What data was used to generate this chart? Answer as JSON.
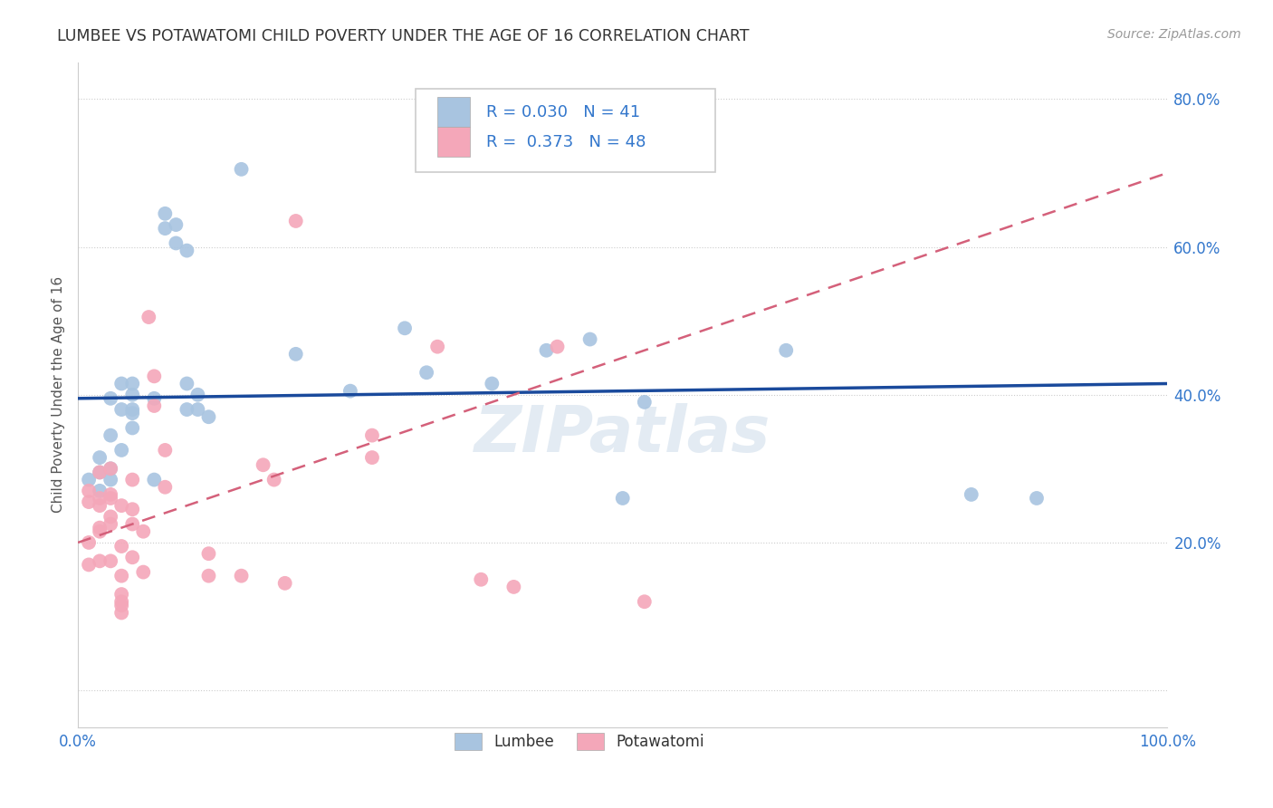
{
  "title": "LUMBEE VS POTAWATOMI CHILD POVERTY UNDER THE AGE OF 16 CORRELATION CHART",
  "source": "Source: ZipAtlas.com",
  "ylabel": "Child Poverty Under the Age of 16",
  "xlim": [
    0.0,
    1.0
  ],
  "ylim": [
    0.0,
    0.85
  ],
  "lumbee_color": "#a8c4e0",
  "potawatomi_color": "#f4a7b9",
  "lumbee_line_color": "#1a4a9c",
  "potawatomi_line_color": "#d4607a",
  "legend_lumbee_label": "Lumbee",
  "legend_potawatomi_label": "Potawatomi",
  "R_lumbee": 0.03,
  "N_lumbee": 41,
  "R_potawatomi": 0.373,
  "N_potawatomi": 48,
  "watermark": "ZIPatlas",
  "lumbee_points": [
    [
      0.01,
      0.285
    ],
    [
      0.02,
      0.295
    ],
    [
      0.02,
      0.315
    ],
    [
      0.02,
      0.27
    ],
    [
      0.03,
      0.3
    ],
    [
      0.03,
      0.345
    ],
    [
      0.03,
      0.395
    ],
    [
      0.03,
      0.285
    ],
    [
      0.04,
      0.325
    ],
    [
      0.04,
      0.38
    ],
    [
      0.04,
      0.415
    ],
    [
      0.05,
      0.38
    ],
    [
      0.05,
      0.355
    ],
    [
      0.05,
      0.4
    ],
    [
      0.05,
      0.375
    ],
    [
      0.05,
      0.415
    ],
    [
      0.07,
      0.395
    ],
    [
      0.07,
      0.285
    ],
    [
      0.08,
      0.625
    ],
    [
      0.08,
      0.645
    ],
    [
      0.09,
      0.605
    ],
    [
      0.09,
      0.63
    ],
    [
      0.1,
      0.595
    ],
    [
      0.1,
      0.38
    ],
    [
      0.1,
      0.415
    ],
    [
      0.11,
      0.38
    ],
    [
      0.11,
      0.4
    ],
    [
      0.12,
      0.37
    ],
    [
      0.15,
      0.705
    ],
    [
      0.2,
      0.455
    ],
    [
      0.25,
      0.405
    ],
    [
      0.3,
      0.49
    ],
    [
      0.32,
      0.43
    ],
    [
      0.38,
      0.415
    ],
    [
      0.43,
      0.46
    ],
    [
      0.47,
      0.475
    ],
    [
      0.5,
      0.26
    ],
    [
      0.52,
      0.39
    ],
    [
      0.65,
      0.46
    ],
    [
      0.82,
      0.265
    ],
    [
      0.88,
      0.26
    ]
  ],
  "potawatomi_points": [
    [
      0.01,
      0.255
    ],
    [
      0.01,
      0.27
    ],
    [
      0.01,
      0.17
    ],
    [
      0.01,
      0.2
    ],
    [
      0.02,
      0.22
    ],
    [
      0.02,
      0.25
    ],
    [
      0.02,
      0.26
    ],
    [
      0.02,
      0.295
    ],
    [
      0.02,
      0.175
    ],
    [
      0.02,
      0.215
    ],
    [
      0.03,
      0.225
    ],
    [
      0.03,
      0.265
    ],
    [
      0.03,
      0.3
    ],
    [
      0.03,
      0.235
    ],
    [
      0.03,
      0.26
    ],
    [
      0.03,
      0.175
    ],
    [
      0.04,
      0.195
    ],
    [
      0.04,
      0.25
    ],
    [
      0.04,
      0.12
    ],
    [
      0.04,
      0.155
    ],
    [
      0.04,
      0.13
    ],
    [
      0.04,
      0.115
    ],
    [
      0.04,
      0.105
    ],
    [
      0.05,
      0.245
    ],
    [
      0.05,
      0.285
    ],
    [
      0.05,
      0.18
    ],
    [
      0.05,
      0.225
    ],
    [
      0.06,
      0.16
    ],
    [
      0.06,
      0.215
    ],
    [
      0.07,
      0.385
    ],
    [
      0.07,
      0.425
    ],
    [
      0.08,
      0.275
    ],
    [
      0.08,
      0.325
    ],
    [
      0.12,
      0.155
    ],
    [
      0.12,
      0.185
    ],
    [
      0.15,
      0.155
    ],
    [
      0.17,
      0.305
    ],
    [
      0.18,
      0.285
    ],
    [
      0.19,
      0.145
    ],
    [
      0.2,
      0.635
    ],
    [
      0.27,
      0.315
    ],
    [
      0.27,
      0.345
    ],
    [
      0.33,
      0.465
    ],
    [
      0.37,
      0.15
    ],
    [
      0.4,
      0.14
    ],
    [
      0.44,
      0.465
    ],
    [
      0.52,
      0.12
    ],
    [
      0.065,
      0.505
    ]
  ]
}
